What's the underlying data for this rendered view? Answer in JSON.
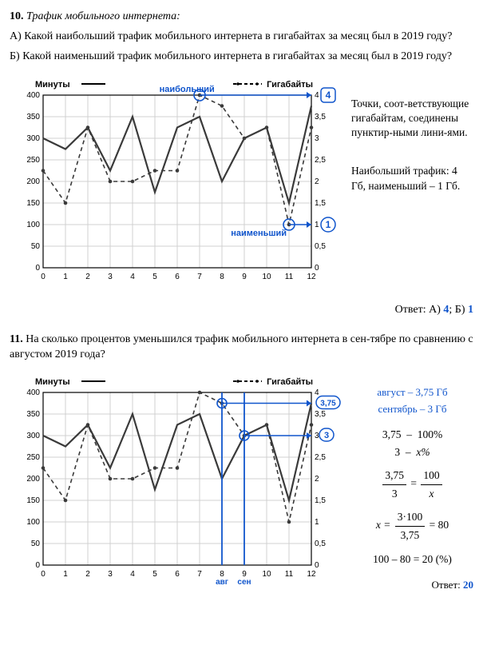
{
  "problem10": {
    "num": "10.",
    "title": "Трафик мобильного интернета:",
    "qA": "А) Какой наибольший трафик мобильного интернета в гигабайтах за месяц был в 2019 году?",
    "qB": "Б) Какой наименьший трафик мобильного интернета в гигабайтах за месяц был в 2019 году?",
    "side1": "Точки, соот-ветствующие гигабайтам, соединены пунктир-ными лини-ями.",
    "side2": "Наибольший трафик: 4 Гб, наименьший – 1 Гб.",
    "answer_label": "Ответ: А) ",
    "ansA": "4",
    "mid": "; Б) ",
    "ansB": "1"
  },
  "problem11": {
    "num": "11.",
    "text": "На сколько процентов уменьшился трафик мобильного интернета в сен-тябре по сравнению с августом 2019 года?",
    "aug": "август – 3,75 Гб",
    "sep": "сентябрь – 3 Гб",
    "line1a": "3,75",
    "line1b": "–",
    "line1c": "100%",
    "line2a": "3",
    "line2b": "–",
    "line2c": "x%",
    "frac1_num1": "3,75",
    "frac1_den1": "3",
    "frac1_num2": "100",
    "frac1_den2": "x",
    "xeq": "x =",
    "frac2_num": "3·100",
    "frac2_den": "3,75",
    "frac2_res": "= 80",
    "last": "100 – 80 = 20 (%)",
    "answer_label": "Ответ: ",
    "ans": "20"
  },
  "chart": {
    "left_label": "Минуты",
    "right_label": "Гигабайты",
    "max_label": "наибольший",
    "min_label": "наименьший",
    "badge_max": "4",
    "badge_min": "1",
    "badge375": "3,75",
    "badge3": "3",
    "label_aug": "авг",
    "label_sep": "сен",
    "colors": {
      "grid": "#d0d0d0",
      "axis": "#000000",
      "solid_line": "#3a3a3a",
      "dashed_line": "#3a3a3a",
      "blue": "#1055cc"
    },
    "yticks_left": [
      0,
      50,
      100,
      150,
      200,
      250,
      300,
      350,
      400
    ],
    "yticks_right": [
      "0",
      "0,5",
      "1",
      "1,5",
      "2",
      "2,5",
      "3",
      "3,5",
      "4"
    ],
    "xticks": [
      0,
      1,
      2,
      3,
      4,
      5,
      6,
      7,
      8,
      9,
      10,
      11,
      12
    ],
    "minutes": [
      300,
      275,
      325,
      225,
      350,
      175,
      325,
      350,
      200,
      300,
      325,
      150,
      375
    ],
    "gigabytes": [
      225,
      150,
      325,
      200,
      200,
      225,
      225,
      400,
      375,
      300,
      325,
      100,
      325
    ]
  }
}
